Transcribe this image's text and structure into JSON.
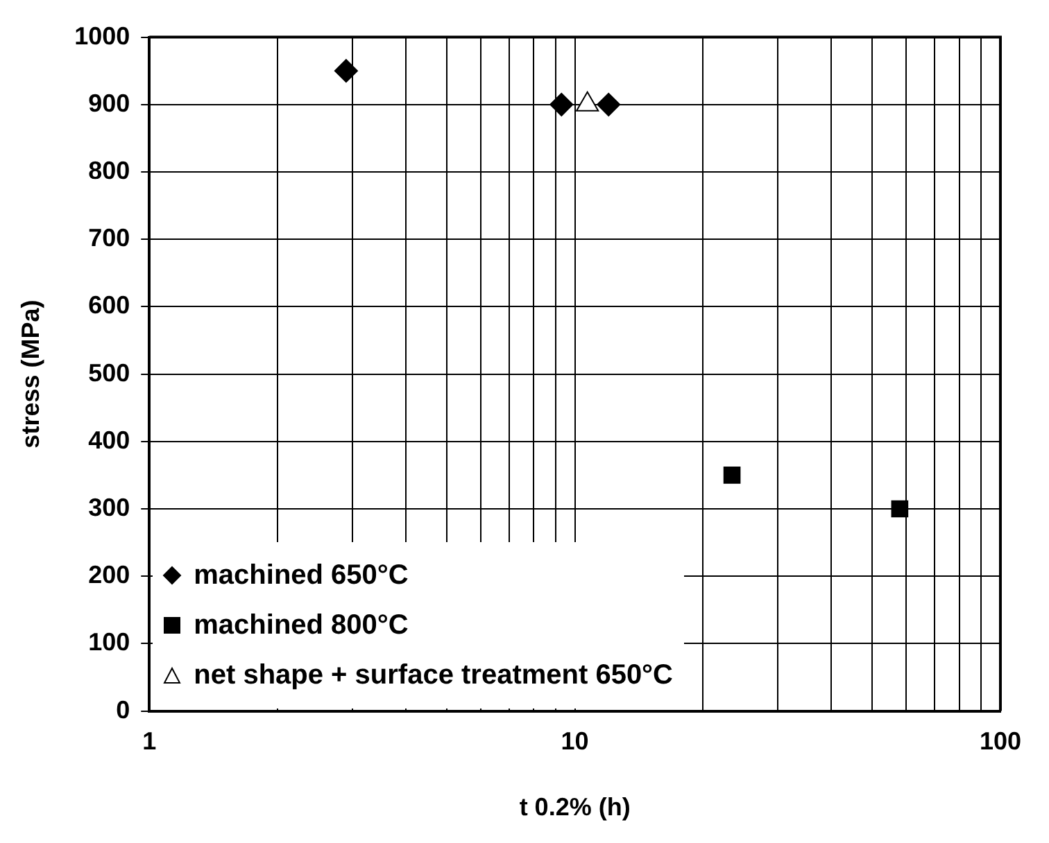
{
  "chart_data": {
    "type": "scatter",
    "xlabel": "t 0.2% (h)",
    "ylabel": "stress (MPa)",
    "log": "x",
    "xlim": [
      1,
      100
    ],
    "xticks": [
      1,
      {
        "value": 2,
        "label": null
      },
      {
        "value": 3,
        "label": null
      },
      {
        "value": 4,
        "label": null
      },
      {
        "value": 5,
        "label": null
      },
      {
        "value": 6,
        "label": null
      },
      {
        "value": 7,
        "label": null
      },
      {
        "value": 8,
        "label": null
      },
      {
        "value": 9,
        "label": null
      },
      10,
      {
        "value": 20,
        "label": null
      },
      {
        "value": 30,
        "label": null
      },
      {
        "value": 40,
        "label": null
      },
      {
        "value": 50,
        "label": null
      },
      {
        "value": 60,
        "label": null
      },
      {
        "value": 70,
        "label": null
      },
      {
        "value": 80,
        "label": null
      },
      {
        "value": 90,
        "label": null
      },
      100
    ],
    "ylim": [
      0,
      1000
    ],
    "yticks": [
      0,
      100,
      200,
      300,
      400,
      500,
      600,
      700,
      800,
      900,
      1000
    ],
    "grid": true,
    "legend": "bottom left",
    "series": [
      {
        "name": "machined 650°C",
        "color": "#000000",
        "marker": "diamond",
        "x": [
          2.9,
          9.3,
          12
        ],
        "values": [
          950,
          900,
          900
        ]
      },
      {
        "name": "machined 800°C",
        "color": "#000000",
        "marker": "square",
        "x": [
          23.4,
          58
        ],
        "values": [
          350,
          300
        ]
      },
      {
        "name": "net shape + surface treatment 650°C",
        "color": "#ffffff",
        "marker": "triangle",
        "x": [
          10.7
        ],
        "values": [
          900
        ]
      }
    ]
  }
}
